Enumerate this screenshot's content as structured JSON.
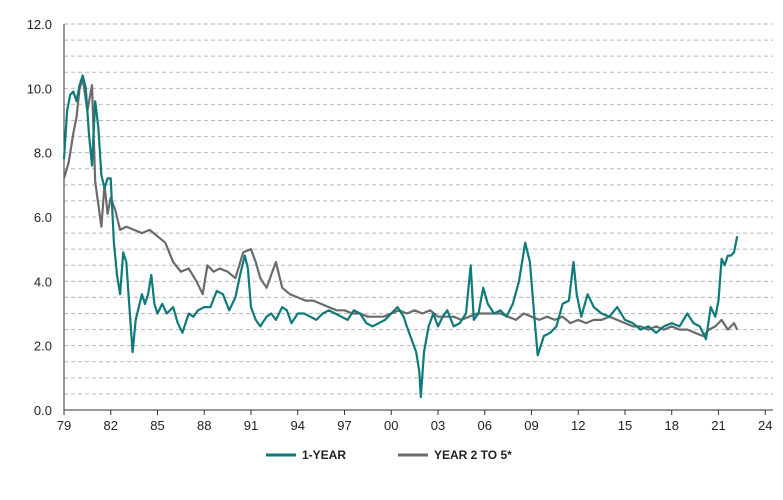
{
  "chart_data": {
    "type": "line",
    "title": "",
    "xlabel": "",
    "ylabel": "",
    "x_tick_labels": [
      "79",
      "82",
      "85",
      "88",
      "91",
      "94",
      "97",
      "00",
      "03",
      "06",
      "09",
      "12",
      "15",
      "18",
      "21",
      "24"
    ],
    "y_tick_labels": [
      "0.0",
      "2.0",
      "4.0",
      "6.0",
      "8.0",
      "10.0",
      "12.0"
    ],
    "xlim": [
      1979.0,
      2024.5
    ],
    "ylim": [
      0,
      12
    ],
    "grid": "horizontal dashed",
    "legend_position": "bottom-center",
    "series": [
      {
        "name": "1-YEAR",
        "color": "#0f7a7a",
        "points": [
          [
            1979.0,
            7.8
          ],
          [
            1979.2,
            9.3
          ],
          [
            1979.4,
            9.8
          ],
          [
            1979.6,
            9.9
          ],
          [
            1979.8,
            9.6
          ],
          [
            1980.0,
            10.1
          ],
          [
            1980.2,
            10.4
          ],
          [
            1980.4,
            10.0
          ],
          [
            1980.6,
            8.6
          ],
          [
            1980.8,
            7.6
          ],
          [
            1981.0,
            9.6
          ],
          [
            1981.2,
            8.8
          ],
          [
            1981.4,
            7.3
          ],
          [
            1981.6,
            6.9
          ],
          [
            1981.8,
            7.2
          ],
          [
            1982.0,
            7.2
          ],
          [
            1982.2,
            5.2
          ],
          [
            1982.4,
            4.2
          ],
          [
            1982.6,
            3.6
          ],
          [
            1982.8,
            4.9
          ],
          [
            1983.0,
            4.6
          ],
          [
            1983.2,
            3.2
          ],
          [
            1983.4,
            1.8
          ],
          [
            1983.6,
            2.8
          ],
          [
            1983.8,
            3.2
          ],
          [
            1984.0,
            3.6
          ],
          [
            1984.2,
            3.3
          ],
          [
            1984.4,
            3.6
          ],
          [
            1984.6,
            4.2
          ],
          [
            1984.8,
            3.3
          ],
          [
            1985.0,
            3.0
          ],
          [
            1985.3,
            3.3
          ],
          [
            1985.6,
            3.0
          ],
          [
            1986.0,
            3.2
          ],
          [
            1986.3,
            2.7
          ],
          [
            1986.6,
            2.4
          ],
          [
            1987.0,
            3.0
          ],
          [
            1987.3,
            2.9
          ],
          [
            1987.6,
            3.1
          ],
          [
            1988.0,
            3.2
          ],
          [
            1988.4,
            3.2
          ],
          [
            1988.8,
            3.7
          ],
          [
            1989.2,
            3.6
          ],
          [
            1989.6,
            3.1
          ],
          [
            1990.0,
            3.5
          ],
          [
            1990.3,
            4.2
          ],
          [
            1990.6,
            4.8
          ],
          [
            1990.8,
            4.4
          ],
          [
            1991.0,
            3.2
          ],
          [
            1991.3,
            2.8
          ],
          [
            1991.6,
            2.6
          ],
          [
            1992.0,
            2.9
          ],
          [
            1992.3,
            3.0
          ],
          [
            1992.6,
            2.8
          ],
          [
            1993.0,
            3.2
          ],
          [
            1993.3,
            3.1
          ],
          [
            1993.6,
            2.7
          ],
          [
            1994.0,
            3.0
          ],
          [
            1994.4,
            3.0
          ],
          [
            1994.8,
            2.9
          ],
          [
            1995.2,
            2.8
          ],
          [
            1995.6,
            3.0
          ],
          [
            1996.0,
            3.1
          ],
          [
            1996.4,
            3.0
          ],
          [
            1996.8,
            2.9
          ],
          [
            1997.2,
            2.8
          ],
          [
            1997.6,
            3.1
          ],
          [
            1998.0,
            3.0
          ],
          [
            1998.4,
            2.7
          ],
          [
            1998.8,
            2.6
          ],
          [
            1999.2,
            2.7
          ],
          [
            1999.6,
            2.8
          ],
          [
            2000.0,
            3.0
          ],
          [
            2000.4,
            3.2
          ],
          [
            2000.8,
            2.9
          ],
          [
            2001.0,
            2.6
          ],
          [
            2001.3,
            2.2
          ],
          [
            2001.6,
            1.8
          ],
          [
            2001.8,
            1.2
          ],
          [
            2001.9,
            0.4
          ],
          [
            2002.1,
            1.8
          ],
          [
            2002.4,
            2.6
          ],
          [
            2002.7,
            3.0
          ],
          [
            2003.0,
            2.6
          ],
          [
            2003.3,
            2.9
          ],
          [
            2003.6,
            3.1
          ],
          [
            2004.0,
            2.6
          ],
          [
            2004.4,
            2.7
          ],
          [
            2004.8,
            3.0
          ],
          [
            2005.1,
            4.5
          ],
          [
            2005.3,
            2.8
          ],
          [
            2005.6,
            3.0
          ],
          [
            2005.9,
            3.8
          ],
          [
            2006.2,
            3.3
          ],
          [
            2006.6,
            3.0
          ],
          [
            2007.0,
            3.1
          ],
          [
            2007.4,
            2.9
          ],
          [
            2007.8,
            3.3
          ],
          [
            2008.2,
            4.0
          ],
          [
            2008.6,
            5.2
          ],
          [
            2008.9,
            4.6
          ],
          [
            2009.2,
            2.8
          ],
          [
            2009.4,
            1.7
          ],
          [
            2009.8,
            2.3
          ],
          [
            2010.2,
            2.4
          ],
          [
            2010.6,
            2.6
          ],
          [
            2011.0,
            3.3
          ],
          [
            2011.4,
            3.4
          ],
          [
            2011.7,
            4.6
          ],
          [
            2011.9,
            3.6
          ],
          [
            2012.2,
            2.9
          ],
          [
            2012.6,
            3.6
          ],
          [
            2013.0,
            3.2
          ],
          [
            2013.5,
            3.0
          ],
          [
            2014.0,
            2.9
          ],
          [
            2014.5,
            3.2
          ],
          [
            2015.0,
            2.8
          ],
          [
            2015.5,
            2.7
          ],
          [
            2016.0,
            2.5
          ],
          [
            2016.5,
            2.6
          ],
          [
            2017.0,
            2.4
          ],
          [
            2017.5,
            2.6
          ],
          [
            2018.0,
            2.7
          ],
          [
            2018.5,
            2.6
          ],
          [
            2019.0,
            3.0
          ],
          [
            2019.4,
            2.7
          ],
          [
            2019.8,
            2.6
          ],
          [
            2020.2,
            2.2
          ],
          [
            2020.5,
            3.2
          ],
          [
            2020.8,
            2.9
          ],
          [
            2021.0,
            3.4
          ],
          [
            2021.2,
            4.7
          ],
          [
            2021.4,
            4.5
          ],
          [
            2021.6,
            4.8
          ],
          [
            2021.8,
            4.8
          ],
          [
            2022.0,
            4.9
          ],
          [
            2022.2,
            5.4
          ]
        ]
      },
      {
        "name": "YEAR 2 TO 5*",
        "color": "#6b6b6b",
        "points": [
          [
            1979.0,
            7.2
          ],
          [
            1979.3,
            7.7
          ],
          [
            1979.6,
            8.6
          ],
          [
            1979.8,
            9.1
          ],
          [
            1980.0,
            10.0
          ],
          [
            1980.2,
            10.3
          ],
          [
            1980.5,
            9.3
          ],
          [
            1980.8,
            10.1
          ],
          [
            1981.0,
            7.1
          ],
          [
            1981.2,
            6.4
          ],
          [
            1981.4,
            5.7
          ],
          [
            1981.6,
            7.0
          ],
          [
            1981.8,
            6.1
          ],
          [
            1982.0,
            6.6
          ],
          [
            1982.3,
            6.2
          ],
          [
            1982.6,
            5.6
          ],
          [
            1983.0,
            5.7
          ],
          [
            1983.5,
            5.6
          ],
          [
            1984.0,
            5.5
          ],
          [
            1984.5,
            5.6
          ],
          [
            1985.0,
            5.4
          ],
          [
            1985.5,
            5.2
          ],
          [
            1986.0,
            4.6
          ],
          [
            1986.5,
            4.3
          ],
          [
            1987.0,
            4.4
          ],
          [
            1987.5,
            4.0
          ],
          [
            1987.9,
            3.6
          ],
          [
            1988.2,
            4.5
          ],
          [
            1988.6,
            4.3
          ],
          [
            1989.0,
            4.4
          ],
          [
            1989.5,
            4.3
          ],
          [
            1990.0,
            4.1
          ],
          [
            1990.5,
            4.9
          ],
          [
            1991.0,
            5.0
          ],
          [
            1991.3,
            4.6
          ],
          [
            1991.6,
            4.1
          ],
          [
            1992.0,
            3.8
          ],
          [
            1992.3,
            4.2
          ],
          [
            1992.6,
            4.6
          ],
          [
            1993.0,
            3.8
          ],
          [
            1993.5,
            3.6
          ],
          [
            1994.0,
            3.5
          ],
          [
            1994.5,
            3.4
          ],
          [
            1995.0,
            3.4
          ],
          [
            1995.5,
            3.3
          ],
          [
            1996.0,
            3.2
          ],
          [
            1996.5,
            3.1
          ],
          [
            1997.0,
            3.1
          ],
          [
            1997.5,
            3.0
          ],
          [
            1998.0,
            3.0
          ],
          [
            1998.5,
            2.9
          ],
          [
            1999.0,
            2.9
          ],
          [
            1999.5,
            2.9
          ],
          [
            2000.0,
            3.0
          ],
          [
            2000.5,
            3.1
          ],
          [
            2001.0,
            3.0
          ],
          [
            2001.5,
            3.1
          ],
          [
            2002.0,
            3.0
          ],
          [
            2002.5,
            3.1
          ],
          [
            2003.0,
            2.9
          ],
          [
            2003.5,
            2.9
          ],
          [
            2004.0,
            2.9
          ],
          [
            2004.5,
            2.8
          ],
          [
            2005.0,
            2.9
          ],
          [
            2005.5,
            3.0
          ],
          [
            2006.0,
            3.0
          ],
          [
            2006.5,
            3.0
          ],
          [
            2007.0,
            3.0
          ],
          [
            2007.5,
            2.9
          ],
          [
            2008.0,
            2.8
          ],
          [
            2008.5,
            3.0
          ],
          [
            2009.0,
            2.9
          ],
          [
            2009.5,
            2.8
          ],
          [
            2010.0,
            2.9
          ],
          [
            2010.5,
            2.8
          ],
          [
            2011.0,
            2.9
          ],
          [
            2011.5,
            2.7
          ],
          [
            2012.0,
            2.8
          ],
          [
            2012.5,
            2.7
          ],
          [
            2013.0,
            2.8
          ],
          [
            2013.5,
            2.8
          ],
          [
            2014.0,
            2.9
          ],
          [
            2014.5,
            2.8
          ],
          [
            2015.0,
            2.7
          ],
          [
            2015.5,
            2.6
          ],
          [
            2016.0,
            2.6
          ],
          [
            2016.5,
            2.5
          ],
          [
            2017.0,
            2.6
          ],
          [
            2017.5,
            2.5
          ],
          [
            2018.0,
            2.6
          ],
          [
            2018.5,
            2.5
          ],
          [
            2019.0,
            2.5
          ],
          [
            2019.5,
            2.4
          ],
          [
            2020.0,
            2.3
          ],
          [
            2020.4,
            2.5
          ],
          [
            2020.8,
            2.6
          ],
          [
            2021.2,
            2.8
          ],
          [
            2021.6,
            2.5
          ],
          [
            2022.0,
            2.7
          ],
          [
            2022.2,
            2.5
          ]
        ]
      }
    ]
  }
}
